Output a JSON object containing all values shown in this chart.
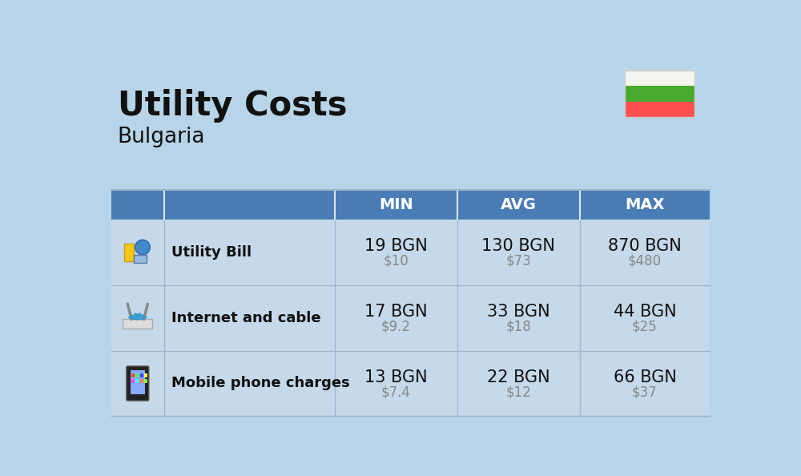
{
  "title": "Utility Costs",
  "subtitle": "Bulgaria",
  "background_color": "#b8d4e8",
  "header_color": "#4a7db5",
  "header_text_color": "#ffffff",
  "row_bg_color": "#c5d9ea",
  "separator_color": "#a0b8cc",
  "text_color_dark": "#111111",
  "text_color_usd": "#888888",
  "col_headers": [
    "MIN",
    "AVG",
    "MAX"
  ],
  "rows": [
    {
      "label": "Utility Bill",
      "bgn_values": [
        "19 BGN",
        "130 BGN",
        "870 BGN"
      ],
      "usd_values": [
        "$10",
        "$73",
        "$480"
      ]
    },
    {
      "label": "Internet and cable",
      "bgn_values": [
        "17 BGN",
        "33 BGN",
        "44 BGN"
      ],
      "usd_values": [
        "$9.2",
        "$18",
        "$25"
      ]
    },
    {
      "label": "Mobile phone charges",
      "bgn_values": [
        "13 BGN",
        "22 BGN",
        "66 BGN"
      ],
      "usd_values": [
        "$7.4",
        "$12",
        "$37"
      ]
    }
  ],
  "flag_colors": [
    "#f5f5f0",
    "#4aaa2e",
    "#ff5050"
  ],
  "title_fontsize": 30,
  "subtitle_fontsize": 19,
  "header_fontsize": 14,
  "cell_bgn_fontsize": 15,
  "cell_usd_fontsize": 12,
  "label_fontsize": 13
}
